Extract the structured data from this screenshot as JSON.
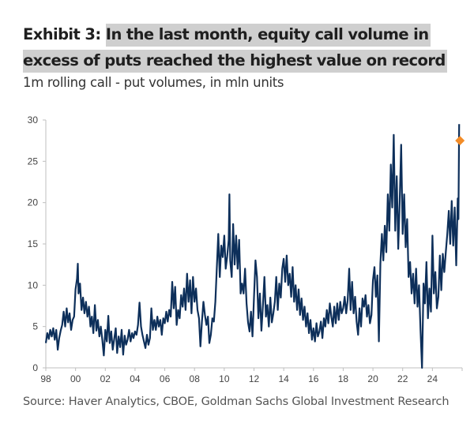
{
  "header": {
    "exhibit_label": "Exhibit 3:",
    "title_line1": "In the last month, equity call volume in",
    "title_line2": "excess of puts reached the highest value on record",
    "subtitle": "1m rolling call - put volumes, in mln units"
  },
  "footer": {
    "source": "Source: Haver Analytics, CBOE, Goldman Sachs Global Investment Research"
  },
  "colors": {
    "series": "#0d2f5a",
    "marker": "#f28c28",
    "axis": "#bfbfbf",
    "highlight": "#cfcfcf"
  },
  "chart_data": {
    "type": "line",
    "title": "In the last month, equity call volume in excess of puts reached the highest value on record",
    "subtitle": "1m rolling call - put volumes, in mln units",
    "xlabel": "",
    "ylabel": "",
    "xlim": [
      1998,
      2026
    ],
    "ylim": [
      0,
      30
    ],
    "grid": false,
    "legend": "none",
    "x_ticks": [
      1998,
      2000,
      2002,
      2004,
      2006,
      2008,
      2010,
      2012,
      2014,
      2016,
      2018,
      2020,
      2022,
      2024
    ],
    "x_tick_labels": [
      "98",
      "00",
      "02",
      "04",
      "06",
      "08",
      "10",
      "12",
      "14",
      "16",
      "18",
      "20",
      "22",
      "24"
    ],
    "y_ticks": [
      0,
      5,
      10,
      15,
      20,
      25,
      30
    ],
    "y_tick_labels": [
      "0",
      "5",
      "10",
      "15",
      "20",
      "25",
      "30"
    ],
    "series": [
      {
        "name": "1m rolling call - put volume",
        "x": [
          1998.0,
          1998.1,
          1998.2,
          1998.3,
          1998.4,
          1998.5,
          1998.6,
          1998.7,
          1998.8,
          1998.9,
          1999.0,
          1999.1,
          1999.2,
          1999.3,
          1999.4,
          1999.5,
          1999.6,
          1999.7,
          1999.8,
          1999.9,
          2000.0,
          2000.1,
          2000.15,
          2000.2,
          2000.3,
          2000.4,
          2000.5,
          2000.6,
          2000.7,
          2000.8,
          2000.9,
          2001.0,
          2001.1,
          2001.2,
          2001.3,
          2001.4,
          2001.5,
          2001.6,
          2001.7,
          2001.8,
          2001.9,
          2002.0,
          2002.1,
          2002.2,
          2002.3,
          2002.4,
          2002.5,
          2002.6,
          2002.7,
          2002.8,
          2002.9,
          2003.0,
          2003.1,
          2003.2,
          2003.3,
          2003.4,
          2003.5,
          2003.6,
          2003.7,
          2003.8,
          2003.9,
          2004.0,
          2004.1,
          2004.2,
          2004.3,
          2004.4,
          2004.5,
          2004.6,
          2004.7,
          2004.8,
          2004.9,
          2005.0,
          2005.1,
          2005.2,
          2005.3,
          2005.4,
          2005.5,
          2005.6,
          2005.7,
          2005.8,
          2005.9,
          2006.0,
          2006.1,
          2006.2,
          2006.3,
          2006.4,
          2006.5,
          2006.6,
          2006.7,
          2006.8,
          2006.9,
          2007.0,
          2007.1,
          2007.2,
          2007.3,
          2007.4,
          2007.5,
          2007.6,
          2007.7,
          2007.8,
          2007.9,
          2008.0,
          2008.1,
          2008.2,
          2008.3,
          2008.4,
          2008.5,
          2008.6,
          2008.7,
          2008.8,
          2008.9,
          2009.0,
          2009.1,
          2009.2,
          2009.3,
          2009.4,
          2009.5,
          2009.6,
          2009.7,
          2009.8,
          2009.9,
          2010.0,
          2010.1,
          2010.2,
          2010.3,
          2010.35,
          2010.4,
          2010.5,
          2010.6,
          2010.7,
          2010.8,
          2010.9,
          2011.0,
          2011.1,
          2011.2,
          2011.3,
          2011.4,
          2011.5,
          2011.6,
          2011.7,
          2011.8,
          2011.9,
          2012.0,
          2012.1,
          2012.2,
          2012.3,
          2012.4,
          2012.5,
          2012.6,
          2012.7,
          2012.8,
          2012.9,
          2013.0,
          2013.1,
          2013.2,
          2013.3,
          2013.4,
          2013.5,
          2013.6,
          2013.7,
          2013.8,
          2013.9,
          2014.0,
          2014.1,
          2014.2,
          2014.3,
          2014.4,
          2014.5,
          2014.6,
          2014.7,
          2014.8,
          2014.9,
          2015.0,
          2015.1,
          2015.2,
          2015.3,
          2015.4,
          2015.5,
          2015.6,
          2015.7,
          2015.8,
          2015.9,
          2016.0,
          2016.1,
          2016.2,
          2016.3,
          2016.4,
          2016.5,
          2016.6,
          2016.7,
          2016.8,
          2016.9,
          2017.0,
          2017.1,
          2017.2,
          2017.3,
          2017.4,
          2017.5,
          2017.6,
          2017.7,
          2017.8,
          2017.9,
          2018.0,
          2018.1,
          2018.2,
          2018.3,
          2018.4,
          2018.5,
          2018.6,
          2018.7,
          2018.8,
          2018.9,
          2019.0,
          2019.1,
          2019.2,
          2019.3,
          2019.4,
          2019.5,
          2019.6,
          2019.7,
          2019.8,
          2019.9,
          2020.0,
          2020.1,
          2020.2,
          2020.3,
          2020.4,
          2020.5,
          2020.6,
          2020.7,
          2020.8,
          2020.9,
          2021.0,
          2021.1,
          2021.2,
          2021.3,
          2021.4,
          2021.5,
          2021.6,
          2021.7,
          2021.8,
          2021.9,
          2022.0,
          2022.1,
          2022.2,
          2022.3,
          2022.4,
          2022.5,
          2022.6,
          2022.7,
          2022.8,
          2022.9,
          2023.0,
          2023.1,
          2023.2,
          2023.3,
          2023.4,
          2023.5,
          2023.6,
          2023.7,
          2023.8,
          2023.9,
          2024.0,
          2024.1,
          2024.2,
          2024.3,
          2024.4,
          2024.5,
          2024.6,
          2024.7,
          2024.8,
          2024.9,
          2025.0,
          2025.1,
          2025.2,
          2025.3,
          2025.4,
          2025.5,
          2025.6,
          2025.7,
          2025.75,
          2025.8
        ],
        "values": [
          3.0,
          4.2,
          3.5,
          4.6,
          3.8,
          4.8,
          3.4,
          4.6,
          2.2,
          3.6,
          4.5,
          5.2,
          6.8,
          5.0,
          7.2,
          5.5,
          6.6,
          4.6,
          5.8,
          6.2,
          9.5,
          10.8,
          12.6,
          9.0,
          10.2,
          7.0,
          8.5,
          6.6,
          8.0,
          6.2,
          7.4,
          5.0,
          6.2,
          4.2,
          7.6,
          4.5,
          5.8,
          3.8,
          5.0,
          3.4,
          1.5,
          4.6,
          3.2,
          6.3,
          3.0,
          4.4,
          2.2,
          3.5,
          4.8,
          1.8,
          3.8,
          2.5,
          4.6,
          1.6,
          3.9,
          2.8,
          3.4,
          4.6,
          3.2,
          4.2,
          3.6,
          4.4,
          4.0,
          5.2,
          7.9,
          5.0,
          4.0,
          3.2,
          2.4,
          4.0,
          2.8,
          3.6,
          7.2,
          4.6,
          5.8,
          4.6,
          6.2,
          5.0,
          5.8,
          4.0,
          6.0,
          5.4,
          6.8,
          5.6,
          7.0,
          6.2,
          10.4,
          7.2,
          9.8,
          5.2,
          7.0,
          6.0,
          8.8,
          7.4,
          9.6,
          7.0,
          11.4,
          8.0,
          10.6,
          6.6,
          11.0,
          8.0,
          9.6,
          7.0,
          6.0,
          2.6,
          5.6,
          8.0,
          6.4,
          5.2,
          6.2,
          3.0,
          4.0,
          6.0,
          5.6,
          8.0,
          12.0,
          16.2,
          11.0,
          14.8,
          13.4,
          16.0,
          12.0,
          13.5,
          15.5,
          21.0,
          13.0,
          11.0,
          17.4,
          12.5,
          16.0,
          12.0,
          15.5,
          9.0,
          10.2,
          9.0,
          12.0,
          7.8,
          5.5,
          4.4,
          6.8,
          3.8,
          8.5,
          13.0,
          11.0,
          6.0,
          9.0,
          4.5,
          7.5,
          11.0,
          6.2,
          7.6,
          5.0,
          8.5,
          5.5,
          6.6,
          8.0,
          11.0,
          7.0,
          10.2,
          8.5,
          12.0,
          13.2,
          10.4,
          13.6,
          10.0,
          11.4,
          8.6,
          12.2,
          8.0,
          10.0,
          7.0,
          9.5,
          6.4,
          8.4,
          5.8,
          7.4,
          5.0,
          6.6,
          4.2,
          5.8,
          3.4,
          4.8,
          3.2,
          5.4,
          3.8,
          4.4,
          5.6,
          3.6,
          6.0,
          5.0,
          7.0,
          5.4,
          7.8,
          6.2,
          5.0,
          7.4,
          5.4,
          7.8,
          5.8,
          8.0,
          6.6,
          7.2,
          8.6,
          6.6,
          8.2,
          12.0,
          7.0,
          10.4,
          6.6,
          8.6,
          5.6,
          4.0,
          7.2,
          5.0,
          8.4,
          7.4,
          8.8,
          6.2,
          7.6,
          5.4,
          6.4,
          10.6,
          12.2,
          8.6,
          11.2,
          3.2,
          12.6,
          16.2,
          13.0,
          17.2,
          14.0,
          21.0,
          16.6,
          24.6,
          19.4,
          28.2,
          16.6,
          23.2,
          14.4,
          20.0,
          27.0,
          16.2,
          21.0,
          14.6,
          18.0,
          11.0,
          12.8,
          9.0,
          11.4,
          7.8,
          12.0,
          7.4,
          10.0,
          4.6,
          0.0,
          10.2,
          7.8,
          12.8,
          6.0,
          9.6,
          6.8,
          16.0,
          9.0,
          11.6,
          7.2,
          8.6,
          13.6,
          9.4,
          13.8,
          11.6,
          14.0,
          16.2,
          19.0,
          15.0,
          20.2,
          14.8,
          19.4,
          12.4,
          20.5,
          18.0,
          29.5
        ]
      },
      {
        "name": "latest",
        "type": "marker",
        "x": [
          2025.85
        ],
        "values": [
          27.5
        ]
      }
    ]
  }
}
